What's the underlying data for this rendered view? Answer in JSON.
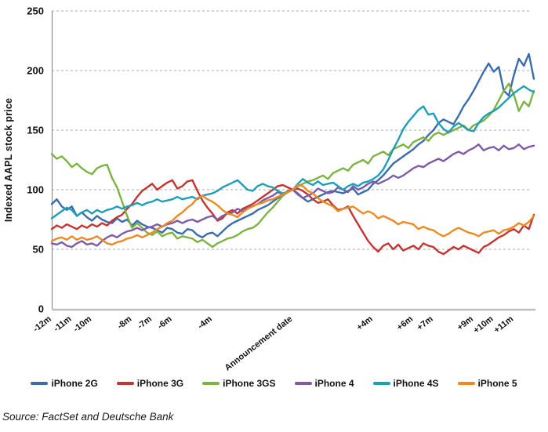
{
  "source": {
    "label": "Source: FactSet and Deutsche Bank"
  },
  "chart_data": {
    "type": "line",
    "title": "",
    "xlabel": "",
    "ylabel": "Indexed AAPL stock price",
    "ylim": [
      0,
      250
    ],
    "yticks": [
      0,
      50,
      100,
      150,
      200,
      250
    ],
    "xlim": [
      -12,
      12
    ],
    "x_unit": "months relative to announcement",
    "x_months_step": 0.25,
    "grid": "horizontal-dashed",
    "legend_position": "bottom",
    "xtick_labels": [
      {
        "label": "-12m",
        "month": -12
      },
      {
        "label": "-11m",
        "month": -11
      },
      {
        "label": "-10m",
        "month": -10
      },
      {
        "label": "-8m",
        "month": -8
      },
      {
        "label": "-7m",
        "month": -7
      },
      {
        "label": "-6m",
        "month": -6
      },
      {
        "label": "-4m",
        "month": -4
      },
      {
        "label": "Announcement date",
        "month": 0
      },
      {
        "label": "+4m",
        "month": 4
      },
      {
        "label": "+6m",
        "month": 6
      },
      {
        "label": "+7m",
        "month": 7
      },
      {
        "label": "+9m",
        "month": 9
      },
      {
        "label": "+10m",
        "month": 10
      },
      {
        "label": "+11m",
        "month": 11
      }
    ],
    "series": [
      {
        "name": "iPhone 2G",
        "color": "#3B6CAC",
        "values": [
          88,
          92,
          86,
          83,
          86,
          78,
          81,
          77,
          74,
          78,
          75,
          73,
          72,
          76,
          73,
          75,
          70,
          74,
          71,
          69,
          68,
          66,
          64,
          68,
          67,
          64,
          63,
          67,
          66,
          62,
          60,
          63,
          64,
          61,
          65,
          69,
          72,
          74,
          76,
          78,
          80,
          83,
          85,
          87,
          90,
          93,
          95,
          98,
          100,
          97,
          93,
          90,
          92,
          94,
          96,
          98,
          99,
          98,
          97,
          99,
          101,
          96,
          98,
          100,
          105,
          108,
          112,
          117,
          122,
          125,
          128,
          131,
          134,
          138,
          141,
          146,
          150,
          156,
          159,
          157,
          155,
          162,
          170,
          176,
          183,
          191,
          199,
          206,
          199,
          203,
          183,
          179,
          196,
          210,
          204,
          214,
          193
        ]
      },
      {
        "name": "iPhone 3G",
        "color": "#C53431",
        "values": [
          67,
          70,
          68,
          71,
          69,
          67,
          70,
          68,
          71,
          69,
          72,
          70,
          74,
          77,
          79,
          84,
          88,
          94,
          99,
          102,
          105,
          100,
          103,
          106,
          108,
          101,
          103,
          107,
          108,
          99,
          91,
          85,
          80,
          74,
          76,
          81,
          83,
          80,
          84,
          86,
          88,
          91,
          94,
          97,
          100,
          103,
          104,
          102,
          100,
          101,
          99,
          96,
          92,
          89,
          90,
          92,
          87,
          83,
          84,
          86,
          78,
          71,
          64,
          57,
          52,
          48,
          53,
          55,
          50,
          54,
          49,
          51,
          53,
          50,
          55,
          53,
          52,
          48,
          46,
          49,
          52,
          50,
          53,
          51,
          49,
          47,
          52,
          54,
          57,
          60,
          62,
          65,
          67,
          64,
          70,
          67,
          79
        ]
      },
      {
        "name": "iPhone 3GS",
        "color": "#7CB342",
        "values": [
          130,
          126,
          128,
          124,
          119,
          122,
          118,
          115,
          113,
          118,
          120,
          121,
          110,
          102,
          90,
          78,
          68,
          72,
          68,
          64,
          62,
          65,
          61,
          63,
          64,
          59,
          61,
          60,
          59,
          56,
          58,
          55,
          52,
          55,
          57,
          59,
          60,
          62,
          65,
          67,
          68,
          71,
          76,
          81,
          85,
          90,
          95,
          98,
          100,
          103,
          105,
          107,
          108,
          110,
          112,
          109,
          114,
          116,
          118,
          116,
          121,
          123,
          125,
          122,
          128,
          130,
          132,
          129,
          134,
          136,
          138,
          135,
          140,
          142,
          144,
          141,
          146,
          148,
          146,
          148,
          150,
          152,
          154,
          150,
          154,
          156,
          158,
          162,
          167,
          175,
          183,
          189,
          180,
          166,
          174,
          170,
          183
        ]
      },
      {
        "name": "iPhone 4",
        "color": "#7E5BA8",
        "values": [
          55,
          54,
          56,
          53,
          52,
          55,
          57,
          54,
          55,
          53,
          57,
          60,
          62,
          60,
          63,
          65,
          66,
          68,
          66,
          68,
          69,
          71,
          69,
          71,
          72,
          74,
          72,
          74,
          75,
          73,
          75,
          77,
          78,
          75,
          78,
          80,
          81,
          84,
          82,
          85,
          86,
          88,
          91,
          93,
          95,
          98,
          96,
          99,
          100,
          96,
          93,
          95,
          97,
          101,
          99,
          97,
          98,
          102,
          100,
          98,
          103,
          100,
          102,
          105,
          107,
          105,
          107,
          109,
          112,
          110,
          112,
          115,
          118,
          120,
          119,
          122,
          124,
          126,
          124,
          127,
          130,
          132,
          130,
          133,
          135,
          138,
          133,
          135,
          136,
          133,
          137,
          134,
          135,
          138,
          134,
          136,
          137
        ]
      },
      {
        "name": "iPhone 4S",
        "color": "#1E9FB8",
        "values": [
          76,
          79,
          82,
          85,
          83,
          78,
          81,
          83,
          80,
          83,
          81,
          83,
          84,
          86,
          84,
          86,
          87,
          89,
          87,
          89,
          90,
          92,
          90,
          91,
          92,
          94,
          92,
          93,
          94,
          92,
          95,
          96,
          97,
          99,
          102,
          104,
          106,
          108,
          104,
          100,
          99,
          103,
          105,
          103,
          102,
          99,
          97,
          98,
          100,
          105,
          109,
          106,
          104,
          107,
          104,
          105,
          106,
          103,
          100,
          103,
          105,
          103,
          106,
          107,
          109,
          112,
          117,
          125,
          134,
          142,
          151,
          157,
          162,
          167,
          170,
          163,
          164,
          156,
          151,
          148,
          153,
          156,
          153,
          150,
          149,
          156,
          161,
          164,
          166,
          169,
          173,
          177,
          181,
          184,
          187,
          184,
          182
        ]
      },
      {
        "name": "iPhone 5",
        "color": "#EC8A21",
        "values": [
          57,
          59,
          60,
          58,
          61,
          58,
          60,
          58,
          59,
          61,
          58,
          55,
          54,
          56,
          57,
          59,
          60,
          62,
          60,
          62,
          64,
          67,
          69,
          72,
          74,
          78,
          81,
          85,
          88,
          93,
          95,
          92,
          90,
          87,
          83,
          80,
          79,
          77,
          81,
          84,
          86,
          88,
          89,
          91,
          92,
          94,
          96,
          98,
          100,
          104,
          103,
          99,
          97,
          93,
          90,
          88,
          86,
          82,
          84,
          85,
          86,
          83,
          80,
          82,
          80,
          76,
          78,
          76,
          74,
          71,
          73,
          72,
          71,
          67,
          69,
          67,
          66,
          63,
          61,
          63,
          66,
          68,
          66,
          64,
          63,
          61,
          64,
          65,
          66,
          63,
          66,
          67,
          69,
          72,
          70,
          73,
          78
        ]
      }
    ]
  }
}
